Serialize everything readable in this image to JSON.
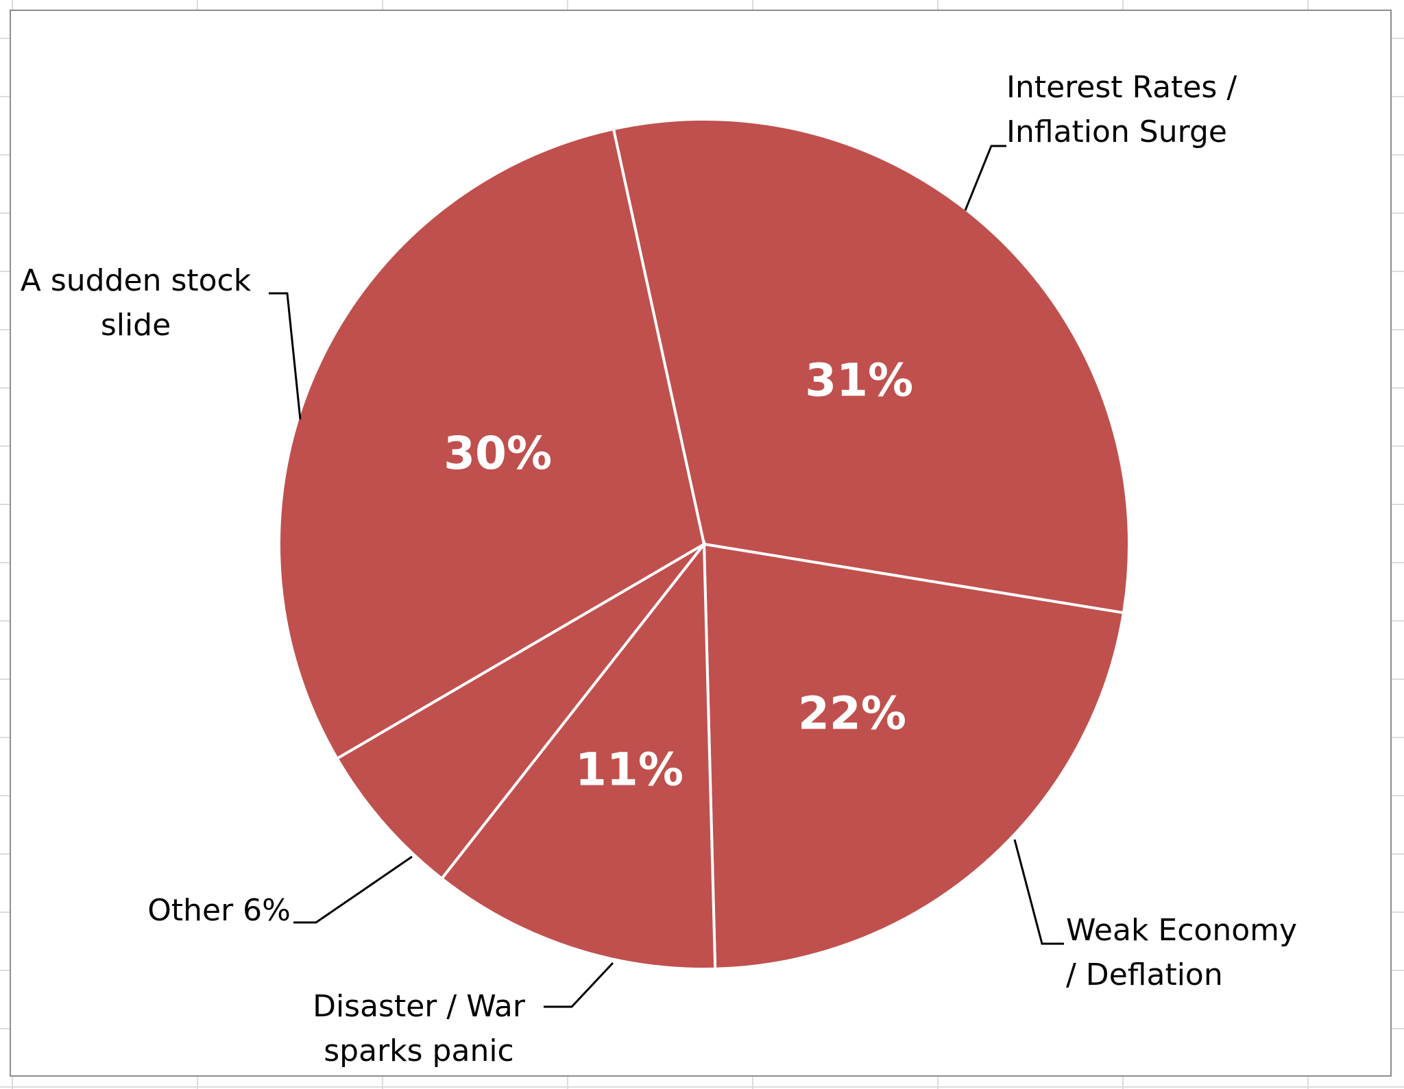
{
  "colors": {
    "slice_fill": "#c0504d",
    "slice_border": "#ffffff",
    "label_text": "#000000",
    "value_text": "#ffffff",
    "frame_border": "#8c8c8c",
    "gridline": "#dadcdd"
  },
  "chart_data": {
    "type": "pie",
    "legend": "none",
    "slices": [
      {
        "label_lines": [
          "Interest Rates /",
          "Inflation Surge"
        ],
        "value": 31,
        "value_label": "31%"
      },
      {
        "label_lines": [
          "Weak Economy",
          "/ Deflation"
        ],
        "value": 22,
        "value_label": "22%"
      },
      {
        "label_lines": [
          "Disaster / War",
          "sparks panic"
        ],
        "value": 11,
        "value_label": "11%"
      },
      {
        "label_lines": [
          "Other 6%"
        ],
        "value": 6,
        "value_label": ""
      },
      {
        "label_lines": [
          "A sudden stock",
          "slide"
        ],
        "value": 30,
        "value_label": "30%"
      }
    ]
  }
}
